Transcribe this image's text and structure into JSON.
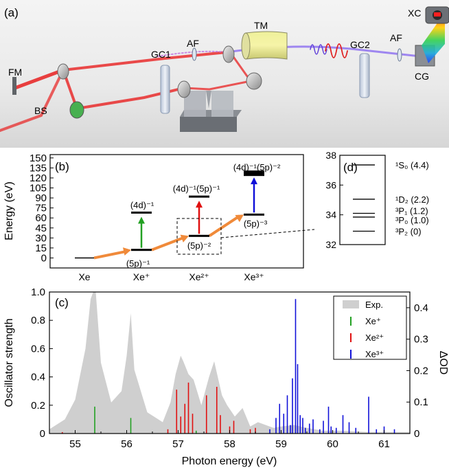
{
  "figure": {
    "panel_a": {
      "label": "(a)",
      "components": {
        "fm": "FM",
        "bs": "BS",
        "gc1": "GC1",
        "af1": "AF",
        "tm": "TM",
        "gc2": "GC2",
        "af2": "AF",
        "cg": "CG",
        "xc": "XC"
      }
    },
    "panel_b": {
      "label": "(b)",
      "ylabel": "Energy (eV)",
      "ylim": [
        -15,
        155
      ],
      "yticks": [
        "0",
        "15",
        "30",
        "45",
        "60",
        "75",
        "90",
        "105",
        "120",
        "135",
        "150"
      ],
      "xticks": [
        "Xe",
        "Xe⁺",
        "Xe²⁺",
        "Xe³⁺"
      ],
      "level_labels": {
        "xe1_ground": "(5p)⁻¹",
        "xe1_excited": "(4d)⁻¹",
        "xe2_ground": "(5p)⁻²",
        "xe2_excited": "(4d)⁻¹(5p)⁻¹",
        "xe3_ground": "(5p)⁻³",
        "xe3_excited": "(4d)⁻¹(5p)⁻²"
      },
      "levels": [
        {
          "ion": "Xe",
          "energy": 0
        },
        {
          "ion": "Xe⁺",
          "energy": 12.1
        },
        {
          "ion": "Xe⁺",
          "energy": 68
        },
        {
          "ion": "Xe²⁺",
          "energy": 33.1
        },
        {
          "ion": "Xe²⁺",
          "energy": 92
        },
        {
          "ion": "Xe³⁺",
          "energy": 65
        },
        {
          "ion": "Xe³⁺",
          "energy": 127
        }
      ]
    },
    "panel_d": {
      "label": "(d)",
      "ylim": [
        32,
        38
      ],
      "yticks": [
        "32",
        "34",
        "36",
        "38"
      ],
      "levels": [
        {
          "term": "¹S₀ (4.4)",
          "energy": 37.35
        },
        {
          "term": "¹D₂ (2.2)",
          "energy": 35.05
        },
        {
          "term": "³P₁ (1.2)",
          "energy": 34.1
        },
        {
          "term": "³P₀ (1.0)",
          "energy": 33.85
        },
        {
          "term": "³P₂ (0)",
          "energy": 32.9
        }
      ]
    },
    "panel_c": {
      "label": "(c)",
      "xlabel": "Photon energy (eV)",
      "ylabel_left": "Oscillator strength",
      "ylabel_right": "ΔOD",
      "xlim": [
        54.5,
        61.5
      ],
      "ylim_left": [
        0,
        1.0
      ],
      "ylim_right": [
        0,
        0.45
      ],
      "xticks": [
        "55",
        "56",
        "57",
        "58",
        "59",
        "60",
        "61"
      ],
      "yticks_left": [
        "0",
        "0.2",
        "0.4",
        "0.6",
        "0.8",
        "1.0"
      ],
      "yticks_right": [
        "0",
        "0.1",
        "0.2",
        "0.3",
        "0.4"
      ],
      "legend": [
        "Exp.",
        "Xe⁺",
        "Xe²⁺",
        "Xe³⁺"
      ]
    }
  },
  "colors": {
    "xe1": "#22a022",
    "xe2": "#e01010",
    "xe3": "#1010d8",
    "exp": "#cfcfcf",
    "arrow": "#f08a3a"
  },
  "chart_data": [
    {
      "type": "line",
      "panel": "b",
      "title": "",
      "ylabel": "Energy (eV)",
      "categories": [
        "Xe",
        "Xe⁺",
        "Xe²⁺",
        "Xe³⁺"
      ],
      "ylim": [
        -15,
        155
      ],
      "series": [
        {
          "name": "Xe⁺",
          "x": [
            12.1
          ],
          "y": [
            68
          ]
        },
        {
          "name": "Xe²⁺",
          "x": [
            33.1
          ],
          "y": [
            92
          ]
        },
        {
          "name": "Xe³⁺",
          "x": [
            65
          ],
          "y": [
            127
          ]
        }
      ]
    },
    {
      "type": "bar",
      "panel": "c",
      "xlabel": "Photon energy (eV)",
      "ylabel": "Oscillator strength",
      "xlim": [
        54.5,
        61.5
      ],
      "ylim": [
        0,
        1.0
      ],
      "series": [
        {
          "name": "Xe⁺",
          "x": [
            55.38,
            56.08,
            57.35
          ],
          "y": [
            0.19,
            0.11,
            0.02
          ]
        },
        {
          "name": "Xe²⁺",
          "x": [
            54.75,
            56.8,
            56.97,
            57.05,
            57.13,
            57.2,
            57.28,
            57.55,
            57.75,
            57.82,
            58.0,
            58.08,
            58.4,
            58.5
          ],
          "y": [
            0.01,
            0.03,
            0.31,
            0.12,
            0.21,
            0.36,
            0.14,
            0.27,
            0.33,
            0.13,
            0.05,
            0.09,
            0.03,
            0.04
          ]
        },
        {
          "name": "Xe³⁺",
          "x": [
            58.78,
            58.9,
            58.97,
            59.05,
            59.12,
            59.18,
            59.22,
            59.28,
            59.32,
            59.37,
            59.42,
            59.47,
            59.55,
            59.62,
            59.75,
            59.82,
            59.92,
            59.97,
            60.07,
            60.2,
            60.32,
            60.45,
            60.7,
            60.85,
            61.0,
            61.2
          ],
          "y": [
            0.03,
            0.11,
            0.21,
            0.14,
            0.27,
            0.06,
            0.39,
            0.95,
            0.49,
            0.13,
            0.11,
            0.04,
            0.07,
            0.1,
            0.03,
            0.09,
            0.19,
            0.05,
            0.04,
            0.13,
            0.08,
            0.04,
            0.26,
            0.03,
            0.05,
            0.03
          ]
        },
        {
          "name": "Exp.",
          "x": [
            54.5,
            54.8,
            55.0,
            55.2,
            55.3,
            55.35,
            55.4,
            55.5,
            55.7,
            55.9,
            56.0,
            56.08,
            56.15,
            56.4,
            56.7,
            56.85,
            56.95,
            57.05,
            57.1,
            57.2,
            57.3,
            57.45,
            57.6,
            57.7,
            57.85,
            57.95,
            58.1,
            58.25,
            58.4,
            58.55,
            58.7,
            58.85,
            59.0,
            59.25,
            59.5,
            59.8,
            60.2,
            60.7,
            61.5
          ],
          "y": [
            0.03,
            0.1,
            0.24,
            0.6,
            0.95,
            1.0,
            1.0,
            0.5,
            0.22,
            0.3,
            0.55,
            0.85,
            0.45,
            0.15,
            0.08,
            0.22,
            0.42,
            0.55,
            0.51,
            0.42,
            0.38,
            0.2,
            0.4,
            0.51,
            0.27,
            0.2,
            0.12,
            0.18,
            0.05,
            0.08,
            0.06,
            0.04,
            0.05,
            0.06,
            0.04,
            0.02,
            0.02,
            0.01,
            0.01
          ]
        }
      ]
    }
  ]
}
